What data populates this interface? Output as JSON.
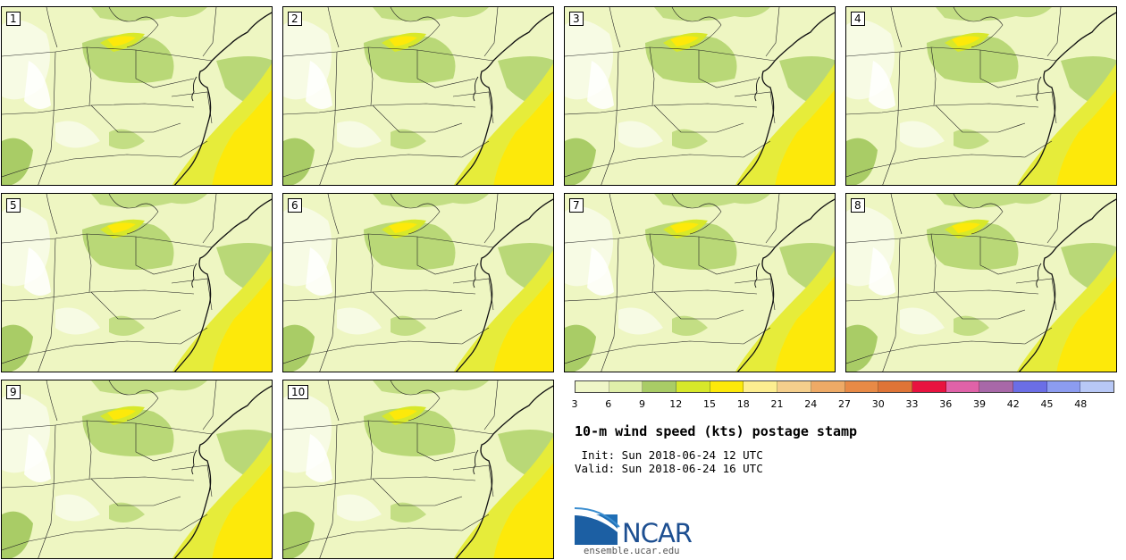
{
  "panels": [
    {
      "label": "1"
    },
    {
      "label": "2"
    },
    {
      "label": "3"
    },
    {
      "label": "4"
    },
    {
      "label": "5"
    },
    {
      "label": "6"
    },
    {
      "label": "7"
    },
    {
      "label": "8"
    },
    {
      "label": "9"
    },
    {
      "label": "10"
    }
  ],
  "colorbar": {
    "colors": [
      "#eff6c8",
      "#e0efaa",
      "#a9cc66",
      "#d7e82a",
      "#fde90a",
      "#fdee90",
      "#f5cf8c",
      "#eeaa66",
      "#e88a46",
      "#df7437",
      "#e8133f",
      "#e062a8",
      "#a868a8",
      "#6b6ee6",
      "#8c9cf0",
      "#b8c8f6"
    ],
    "ticks": [
      "3",
      "6",
      "9",
      "12",
      "15",
      "18",
      "21",
      "24",
      "27",
      "30",
      "33",
      "36",
      "39",
      "42",
      "45",
      "48"
    ]
  },
  "title": "10-m wind speed (kts) postage stamp",
  "init": " Init: Sun 2018-06-24 12 UTC",
  "valid": "Valid: Sun 2018-06-24 16 UTC",
  "logo": {
    "text": "NCAR",
    "url_text": "ensemble.ucar.edu"
  }
}
